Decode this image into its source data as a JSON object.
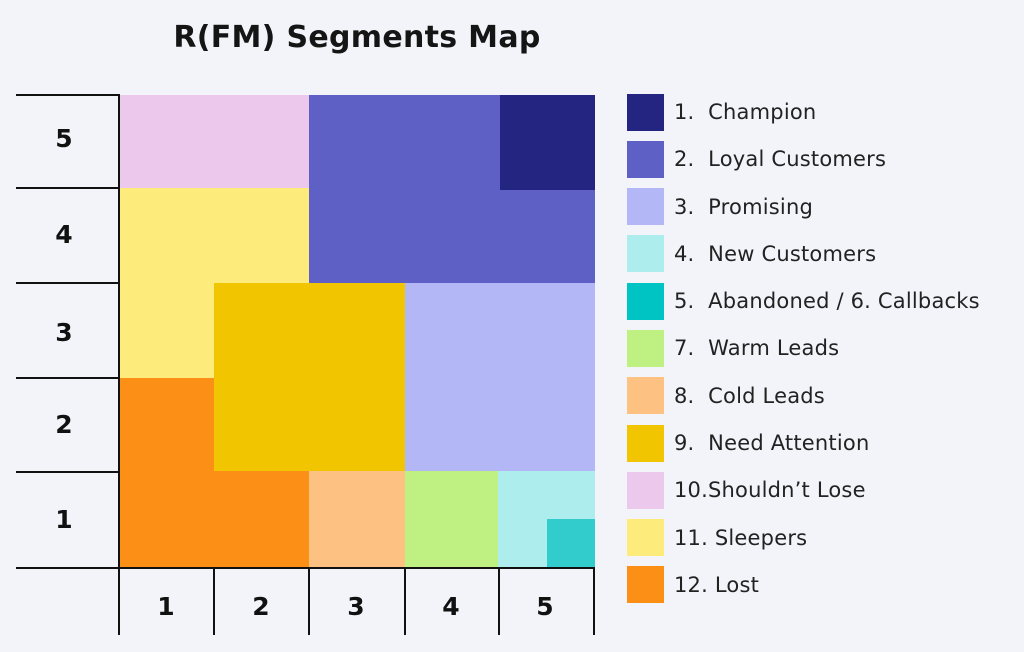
{
  "title": "R(FM) Segments Map",
  "y_axis_ticks": [
    "5",
    "4",
    "3",
    "2",
    "1"
  ],
  "x_axis_ticks": [
    "1",
    "2",
    "3",
    "4",
    "5"
  ],
  "segment_cells": {
    "champion": {
      "color": "#242580",
      "grid": "R5 · FM 5 (upper-right quadrant of cell)"
    },
    "loyal_customers": {
      "color": "#5f60c6",
      "grid": "R4–5 · FM 3–5"
    },
    "promising": {
      "color": "#b4b7f6",
      "grid": "R2–3 · FM 4–5"
    },
    "new_customers": {
      "color": "#aeeded",
      "grid": "R1 · FM 5"
    },
    "abandoned_callbacks": {
      "color": "#32cccc",
      "grid": "R1 · FM 5 (lower-right quadrant of cell)"
    },
    "warm_leads": {
      "color": "#bef182",
      "grid": "R1 · FM 4"
    },
    "cold_leads": {
      "color": "#fdc182",
      "grid": "R1 · FM 3"
    },
    "need_attention": {
      "color": "#f1c500",
      "grid": "R2–3 · FM 2–3"
    },
    "shouldnt_lose": {
      "color": "#ecc8ec",
      "grid": "R5 · FM 1–2"
    },
    "sleepers": {
      "color": "#fdeb7b",
      "grid": "R3–4 · FM 1–2"
    },
    "lost": {
      "color": "#fc8f16",
      "grid": "R1–2 · FM 1–2"
    }
  },
  "legend": [
    {
      "label": "1.  Champion",
      "color": "#242580"
    },
    {
      "label": "2.  Loyal Customers",
      "color": "#5f60c6"
    },
    {
      "label": "3.  Promising",
      "color": "#b4b7f6"
    },
    {
      "label": "4.  New Customers",
      "color": "#aeeded"
    },
    {
      "label": "5.  Abandoned / 6. Callbacks",
      "color": "#00c4c4"
    },
    {
      "label": "7.  Warm Leads",
      "color": "#bef182"
    },
    {
      "label": "8.  Cold Leads",
      "color": "#fdc182"
    },
    {
      "label": "9.  Need Attention",
      "color": "#f1c500"
    },
    {
      "label": "10.Shouldn’t Lose",
      "color": "#ecc8ec"
    },
    {
      "label": "11. Sleepers",
      "color": "#fdeb7b"
    },
    {
      "label": "12. Lost",
      "color": "#fc8f16"
    }
  ]
}
